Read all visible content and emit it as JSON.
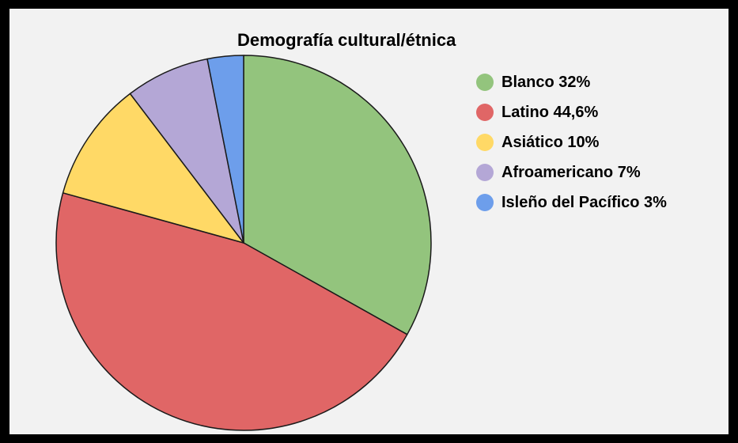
{
  "chart_data": {
    "type": "pie",
    "title": "Demografía cultural/étnica",
    "legend_position": "top-right",
    "slices": [
      {
        "label": "Blanco 32%",
        "value": 32,
        "color": "#93c47d"
      },
      {
        "label": "Latino 44,6%",
        "value": 44.6,
        "color": "#e06666"
      },
      {
        "label": "Asiático 10%",
        "value": 10,
        "color": "#ffd966"
      },
      {
        "label": "Afroamericano 7%",
        "value": 7,
        "color": "#b4a7d6"
      },
      {
        "label": "Isleño del Pacífico 3%",
        "value": 3,
        "color": "#6d9eeb"
      }
    ]
  }
}
